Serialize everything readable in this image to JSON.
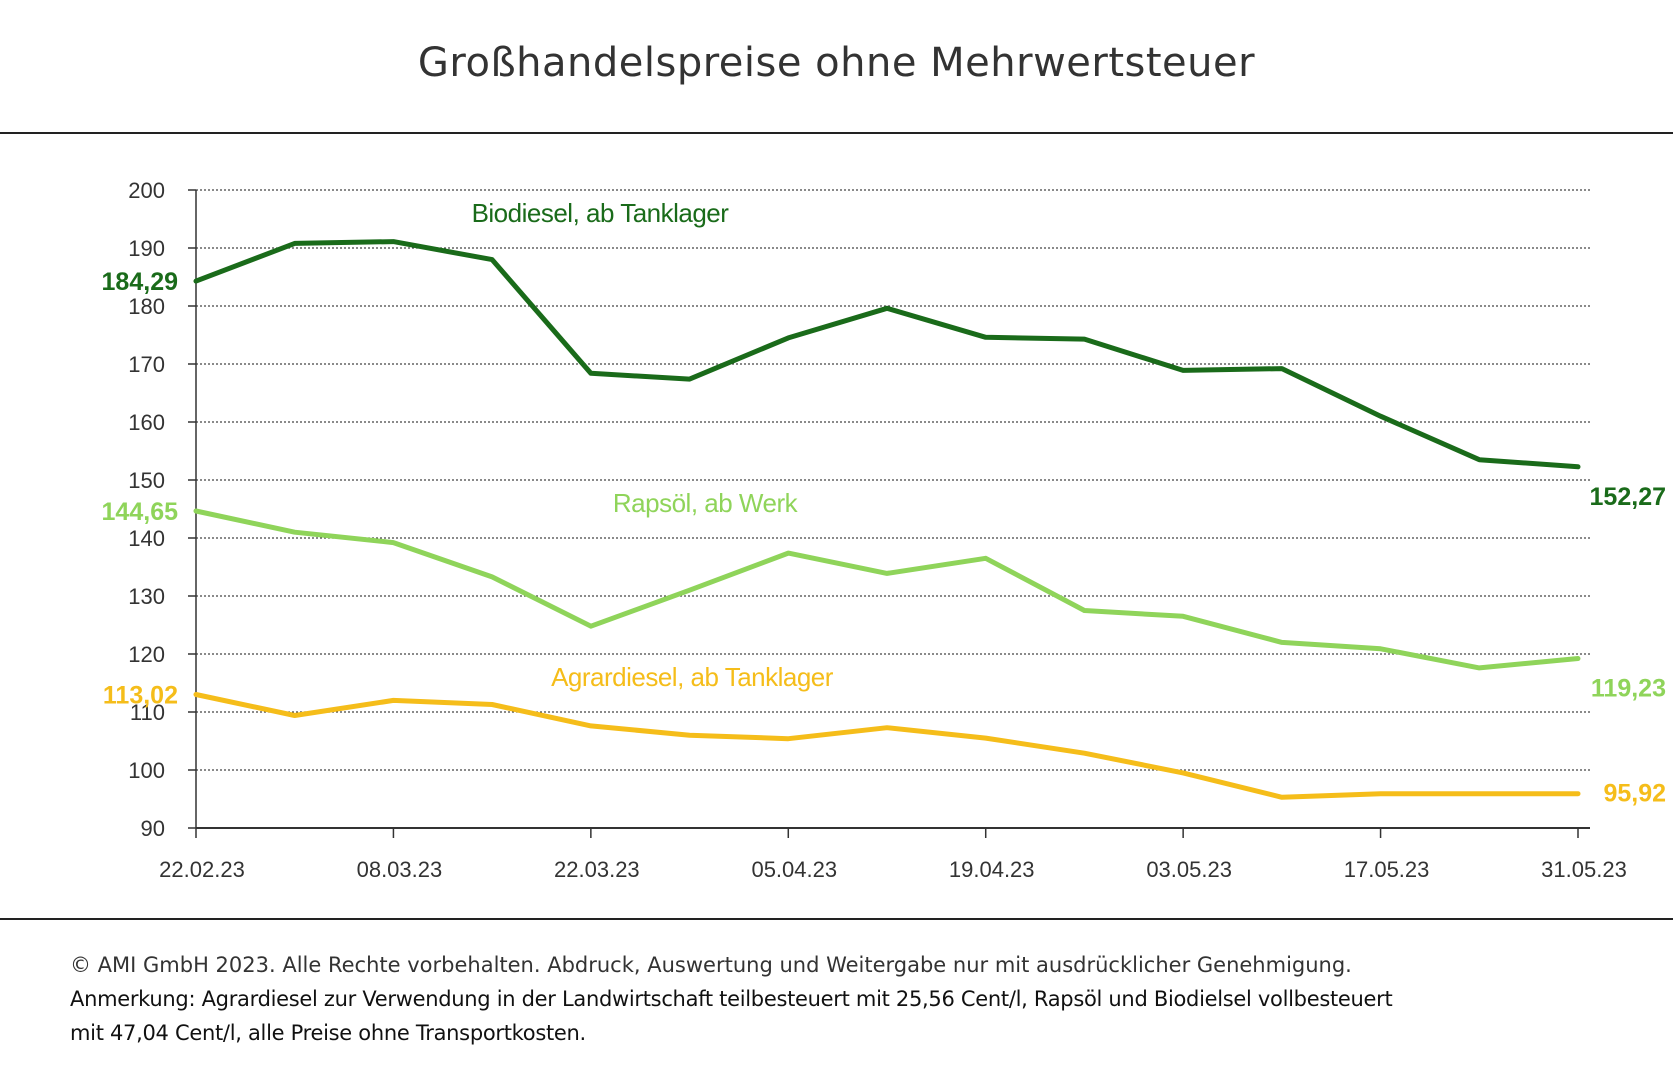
{
  "title": "Großhandelspreise ohne Mehrwertsteuer",
  "footer": {
    "copyright": "© AMI GmbH 2023.  Alle Rechte vorbehalten.  Abdruck, Auswertung und Weitergabe nur mit ausdrücklicher Genehmigung.",
    "note_line1": "Anmerkung: Agrardiesel zur Verwendung in der Landwirtschaft  teilbesteuert mit 25,56 Cent/l, Rapsöl und Biodielsel vollbesteuert",
    "note_line2": "mit 47,04 Cent/l, alle Preise ohne Transportkosten."
  },
  "chart_data": {
    "type": "line",
    "title": "Großhandelspreise ohne Mehrwertsteuer",
    "xlabel": "",
    "ylabel": "",
    "ylim": [
      90,
      200
    ],
    "yticks": [
      90,
      100,
      110,
      120,
      130,
      140,
      150,
      160,
      170,
      180,
      190,
      200
    ],
    "x_tick_labels": [
      "22.02.23",
      "08.03.23",
      "22.03.23",
      "05.04.23",
      "19.04.23",
      "03.05.23",
      "17.05.23",
      "31.05.23"
    ],
    "grid": true,
    "x": [
      "22.02.23",
      "01.03.23",
      "08.03.23",
      "15.03.23",
      "22.03.23",
      "29.03.23",
      "05.04.23",
      "12.04.23",
      "19.04.23",
      "26.04.23",
      "03.05.23",
      "10.05.23",
      "17.05.23",
      "24.05.23",
      "31.05.23"
    ],
    "series": [
      {
        "name": "Biodiesel, ab Tanklager",
        "color": "#1a6b1a",
        "values": [
          184.29,
          190.8,
          191.1,
          188.0,
          168.4,
          167.4,
          174.5,
          179.6,
          174.6,
          174.3,
          168.9,
          169.2,
          161.0,
          153.5,
          152.27
        ],
        "start_label": "184,29",
        "end_label": "152,27"
      },
      {
        "name": "Rapsöl, ab Werk",
        "color": "#8fd45a",
        "values": [
          144.65,
          141.0,
          139.2,
          133.3,
          124.8,
          131.0,
          137.4,
          133.9,
          136.5,
          127.5,
          126.5,
          122.0,
          120.9,
          117.6,
          119.23
        ],
        "start_label": "144,65",
        "end_label": "119,23"
      },
      {
        "name": "Agrardiesel, ab Tanklager",
        "color": "#f5bd1a",
        "values": [
          113.02,
          109.4,
          112.0,
          111.3,
          107.6,
          106.0,
          105.4,
          107.3,
          105.5,
          102.9,
          99.5,
          95.3,
          95.9,
          95.9,
          95.92
        ],
        "start_label": "113,02",
        "end_label": "95,92"
      }
    ]
  }
}
